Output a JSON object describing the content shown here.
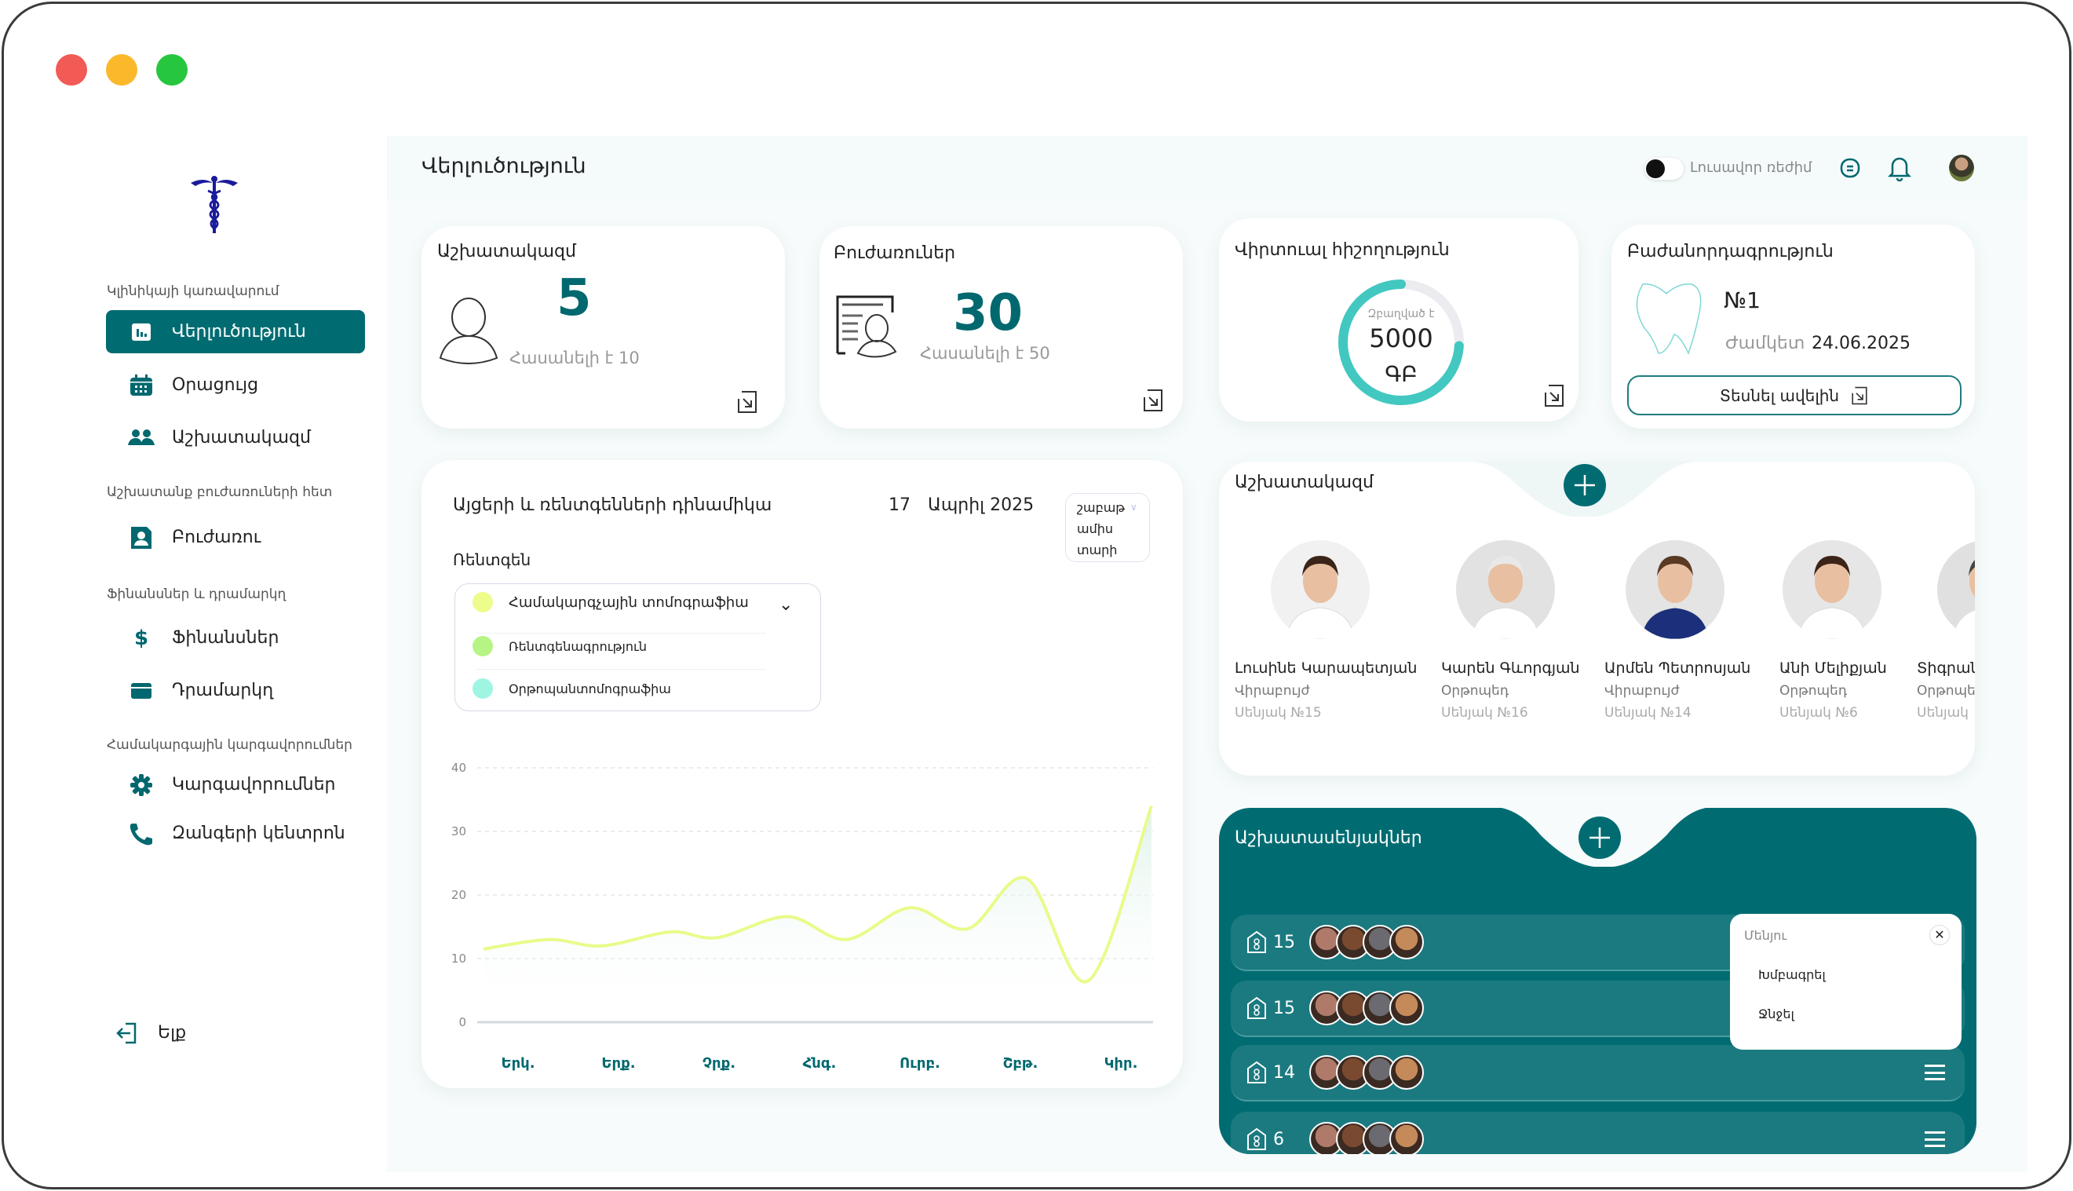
{
  "window": {
    "controls": [
      "close",
      "minimize",
      "maximize"
    ],
    "colors": {
      "close": "#f25a55",
      "minimize": "#fbb82a",
      "maximize": "#27c63f"
    }
  },
  "sidebar": {
    "logo": "caduceus-logo",
    "sections": [
      {
        "label": "Կլինիկայի կառավարում",
        "items": [
          {
            "label": "Վերլուծություն",
            "icon": "chart-icon",
            "active": true
          },
          {
            "label": "Օրացույց",
            "icon": "calendar-icon"
          },
          {
            "label": "Աշխատակազմ",
            "icon": "users-icon"
          }
        ]
      },
      {
        "label": "Աշխատանք բուժառուների հետ",
        "items": [
          {
            "label": "Բուժառու",
            "icon": "patient-icon"
          }
        ]
      },
      {
        "label": "Ֆինանսներ և դրամարկղ",
        "items": [
          {
            "label": "Ֆինանսներ",
            "icon": "dollar-icon"
          },
          {
            "label": "Դրամարկղ",
            "icon": "card-icon"
          }
        ]
      },
      {
        "label": "Համակարգային կարգավորումներ",
        "items": [
          {
            "label": "Կարգավորումներ",
            "icon": "gear-icon"
          },
          {
            "label": "Զանգերի կենտրոն",
            "icon": "phone-icon"
          }
        ]
      }
    ],
    "logout": "Ելք"
  },
  "header": {
    "title": "Վերլուծություն",
    "theme_toggle": "Լուսավոր ռեժիմ"
  },
  "cards": {
    "staff": {
      "title": "Աշխատակազմ",
      "value": "5",
      "sub": "Հասանելի է 10"
    },
    "patients": {
      "title": "Բուժառուներ",
      "value": "30",
      "sub": "Հասանելի է 50"
    },
    "memory": {
      "title": "Վիրտուալ հիշողություն",
      "caption": "Զբաղված է",
      "value": "5000",
      "unit": "ԳԲ",
      "used_fraction": 0.74
    },
    "subscription": {
      "title": "Բաժանորդագրություն",
      "plan": "№1",
      "term_label": "Ժամկետ",
      "term_date": "24.06.2025",
      "button": "Տեսնել ավելին"
    }
  },
  "chart_panel": {
    "title": "Այցերի և ռենտգենների դինամիկա",
    "date_day": "17",
    "date_month_year": "Ապրիլ 2025",
    "period_options": [
      "շաբաթ",
      "ամիս",
      "տարի"
    ],
    "filter_label": "Ռենտգեն",
    "legend": [
      {
        "label": "Համակարգչային տոմոգրաֆիա",
        "color": "#eefc8c"
      },
      {
        "label": "Ռենտգենագրություն",
        "color": "#b6f585"
      },
      {
        "label": "Օրթոպանտոմոգրաֆիա",
        "color": "#9ef6e2"
      }
    ]
  },
  "chart_data": {
    "type": "area",
    "title": "Այցերի և ռենտգենների դինամիկա",
    "categories": [
      "Երկ.",
      "Երք.",
      "Չրք.",
      "Հնգ.",
      "Ուրբ.",
      "Շբթ.",
      "Կիր."
    ],
    "yticks": [
      "0",
      "10",
      "20",
      "30",
      "40"
    ],
    "ylim": [
      0,
      40
    ],
    "grid": true,
    "series": [
      {
        "name": "Համակարգչային տոմոգրաֆիա",
        "color": "#e8fb8a",
        "x": [
          0,
          0.097,
          0.177,
          0.28,
          0.35,
          0.455,
          0.543,
          0.638,
          0.725,
          0.813,
          0.905,
          1.0
        ],
        "values": [
          11.5,
          13,
          12,
          14.2,
          13.3,
          16.6,
          13,
          18,
          14.7,
          22.6,
          6.5,
          34
        ]
      }
    ]
  },
  "staff_panel": {
    "title": "Աշխատակազմ",
    "members": [
      {
        "name": "Լուսինե Կարապետյան",
        "role": "Վիրաբույժ",
        "room": "Սենյակ №15",
        "bg": "#f1f1f1",
        "hair": "#3a2418",
        "coat": "#ffffff"
      },
      {
        "name": "Կարեն Գևորգյան",
        "role": "Օրթոպեդ",
        "room": "Սենյակ №16",
        "bg": "#e2e2e2",
        "hair": "#e8e8e8",
        "coat": "#ffffff"
      },
      {
        "name": "Արմեն Պետրոսյան",
        "role": "Վիրաբույժ",
        "room": "Սենյակ №14",
        "bg": "#e4e4e4",
        "hair": "#5a3a22",
        "coat": "#1c2f7a"
      },
      {
        "name": "Անի Մելիքյան",
        "role": "Օրթոպեդ",
        "room": "Սենյակ №6",
        "bg": "#e6e6e6",
        "hair": "#3d2418",
        "coat": "#ffffff"
      },
      {
        "name": "Տիգրան",
        "role": "Օրթոպեդ",
        "room": "Սենյակ",
        "bg": "#e0e0e0",
        "hair": "#444",
        "coat": "#fff"
      }
    ]
  },
  "rooms_panel": {
    "title": "Աշխատասենյակներ",
    "rooms": [
      {
        "number": "15"
      },
      {
        "number": "15"
      },
      {
        "number": "14"
      },
      {
        "number": "6"
      }
    ],
    "avatar_colors": [
      "#b07a6a",
      "#7a4a30",
      "#6a6a70",
      "#c58a5a"
    ],
    "menu": {
      "title": "Մենյու",
      "items": [
        "Խմբագրել",
        "Ջնջել"
      ]
    }
  },
  "accent": "#006c72"
}
